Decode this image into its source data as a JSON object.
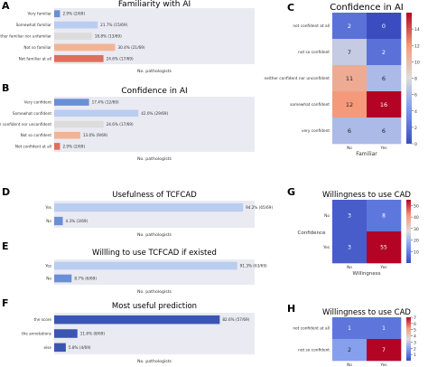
{
  "panels": {
    "A": {
      "letter": "A",
      "title": "Familiarity with AI",
      "xlabel": "No. pathologists",
      "categories": [
        "Very familiar",
        "Somewhat familiar",
        "Neither familiar nor unfamiliar",
        "Not so familiar",
        "Not familiar at all"
      ],
      "values": [
        2.9,
        21.7,
        18.8,
        30.4,
        24.6
      ],
      "labels": [
        "2.9% (2/69)",
        "21.7% (15/69)",
        "18.8% (13/69)",
        "30.4% (21/69)",
        "24.6% (17/69)"
      ],
      "colors": [
        "#6a8fd6",
        "#b9cdf0",
        "#dcdcdc",
        "#f2b497",
        "#de6f5a"
      ]
    },
    "B": {
      "letter": "B",
      "title": "Confidence in AI",
      "xlabel": "No. pathologists",
      "categories": [
        "Very confident",
        "Somewhat confident",
        "Neither confident nor unconfident",
        "Not so confident",
        "Not confident at all"
      ],
      "values": [
        17.4,
        42.0,
        24.6,
        13.0,
        2.9
      ],
      "labels": [
        "17.4% (12/69)",
        "42.0% (29/69)",
        "24.6% (17/69)",
        "13.0% (9/69)",
        "2.9% (2/69)"
      ],
      "colors": [
        "#6a8fd6",
        "#b9cdf0",
        "#dcdcdc",
        "#f2b497",
        "#de6f5a"
      ]
    },
    "D": {
      "letter": "D",
      "title": "Usefulness of TCFCAD",
      "xlabel": "No. pathologists",
      "categories": [
        "Yes",
        "No"
      ],
      "values": [
        94.2,
        4.3
      ],
      "labels": [
        "94.2% (65/69)",
        "4.3% (3/69)"
      ],
      "colors": [
        "#b9cdf0",
        "#6a8fd6"
      ]
    },
    "E": {
      "letter": "E",
      "title": "Willling to use TCFCAD if existed",
      "xlabel": "No. pathologists",
      "categories": [
        "Yes",
        "No"
      ],
      "values": [
        91.3,
        8.7
      ],
      "labels": [
        "91.3% (63/69)",
        "8.7% (6/69)"
      ],
      "colors": [
        "#b9cdf0",
        "#6a8fd6"
      ]
    },
    "F": {
      "letter": "F",
      "title": "Most useful prediction",
      "xlabel": "No. pathologists",
      "categories": [
        "the score",
        "the annotations",
        "else"
      ],
      "values": [
        82.6,
        11.6,
        5.8
      ],
      "labels": [
        "82.6% (57/69)",
        "11.6% (8/69)",
        "5.8% (4/69)"
      ],
      "colors": [
        "#3b55b3",
        "#3b55b3",
        "#3b55b3"
      ]
    },
    "C": {
      "letter": "C",
      "title": "Confidence in AI",
      "xlabel": "Familiar",
      "rows": [
        "not confident at all",
        "not so confident",
        "neither confident nor unconfident",
        "somewhat confident",
        "very confident"
      ],
      "cols": [
        "No",
        "Yes"
      ],
      "matrix": [
        [
          2,
          0
        ],
        [
          7,
          2
        ],
        [
          11,
          6
        ],
        [
          12,
          16
        ],
        [
          6,
          6
        ]
      ],
      "cbar_ticks": [
        "0",
        "2",
        "4",
        "6",
        "8",
        "10",
        "12",
        "14"
      ],
      "vmax": 16
    },
    "G": {
      "letter": "G",
      "title": "Willingness to use CAD",
      "xlabel": "Willingness",
      "ylabel": "Confidence",
      "rows": [
        "No",
        "Yes"
      ],
      "cols": [
        "No",
        "Yes"
      ],
      "matrix": [
        [
          3,
          8
        ],
        [
          3,
          55
        ]
      ],
      "cbar_ticks": [
        "10",
        "20",
        "30",
        "40",
        "50"
      ],
      "vmax": 55
    },
    "H": {
      "letter": "H",
      "title": "Willingness to use CAD",
      "xlabel": "Willingness",
      "rows": [
        "not confident at all",
        "not so confident"
      ],
      "cols": [
        "No",
        "Yes"
      ],
      "matrix": [
        [
          1,
          1
        ],
        [
          2,
          7
        ]
      ],
      "cbar_ticks": [
        "1",
        "2",
        "3",
        "4",
        "5",
        "6",
        "7"
      ],
      "vmax": 7
    }
  },
  "chart_data": [
    {
      "type": "bar",
      "orientation": "horizontal",
      "title": "Familiarity with AI",
      "xlabel": "No. pathologists",
      "categories": [
        "Very familiar",
        "Somewhat familiar",
        "Neither familiar nor unfamiliar",
        "Not so familiar",
        "Not familiar at all"
      ],
      "values": [
        2.9,
        21.7,
        18.8,
        30.4,
        24.6
      ]
    },
    {
      "type": "bar",
      "orientation": "horizontal",
      "title": "Confidence in AI",
      "xlabel": "No. pathologists",
      "categories": [
        "Very confident",
        "Somewhat confident",
        "Neither confident nor unconfident",
        "Not so confident",
        "Not confident at all"
      ],
      "values": [
        17.4,
        42.0,
        24.6,
        13.0,
        2.9
      ]
    },
    {
      "type": "heatmap",
      "title": "Confidence in AI",
      "xlabel": "Familiar",
      "rows": [
        "not confident at all",
        "not so confident",
        "neither confident nor unconfident",
        "somewhat confident",
        "very confident"
      ],
      "cols": [
        "No",
        "Yes"
      ],
      "values": [
        [
          2,
          0
        ],
        [
          7,
          2
        ],
        [
          11,
          6
        ],
        [
          12,
          16
        ],
        [
          6,
          6
        ]
      ]
    },
    {
      "type": "bar",
      "orientation": "horizontal",
      "title": "Usefulness of TCFCAD",
      "xlabel": "No. pathologists",
      "categories": [
        "Yes",
        "No"
      ],
      "values": [
        94.2,
        4.3
      ]
    },
    {
      "type": "bar",
      "orientation": "horizontal",
      "title": "Willling to use TCFCAD if existed",
      "xlabel": "No. pathologists",
      "categories": [
        "Yes",
        "No"
      ],
      "values": [
        91.3,
        8.7
      ]
    },
    {
      "type": "bar",
      "orientation": "horizontal",
      "title": "Most useful prediction",
      "xlabel": "No. pathologists",
      "categories": [
        "the score",
        "the annotations",
        "else"
      ],
      "values": [
        82.6,
        11.6,
        5.8
      ]
    },
    {
      "type": "heatmap",
      "title": "Willingness to use CAD",
      "xlabel": "Willingness",
      "ylabel": "Confidence",
      "rows": [
        "No",
        "Yes"
      ],
      "cols": [
        "No",
        "Yes"
      ],
      "values": [
        [
          3,
          8
        ],
        [
          3,
          55
        ]
      ]
    },
    {
      "type": "heatmap",
      "title": "Willingness to use CAD",
      "xlabel": "Willingness",
      "rows": [
        "not confident at all",
        "not so confident"
      ],
      "cols": [
        "No",
        "Yes"
      ],
      "values": [
        [
          1,
          1
        ],
        [
          2,
          7
        ]
      ]
    }
  ]
}
